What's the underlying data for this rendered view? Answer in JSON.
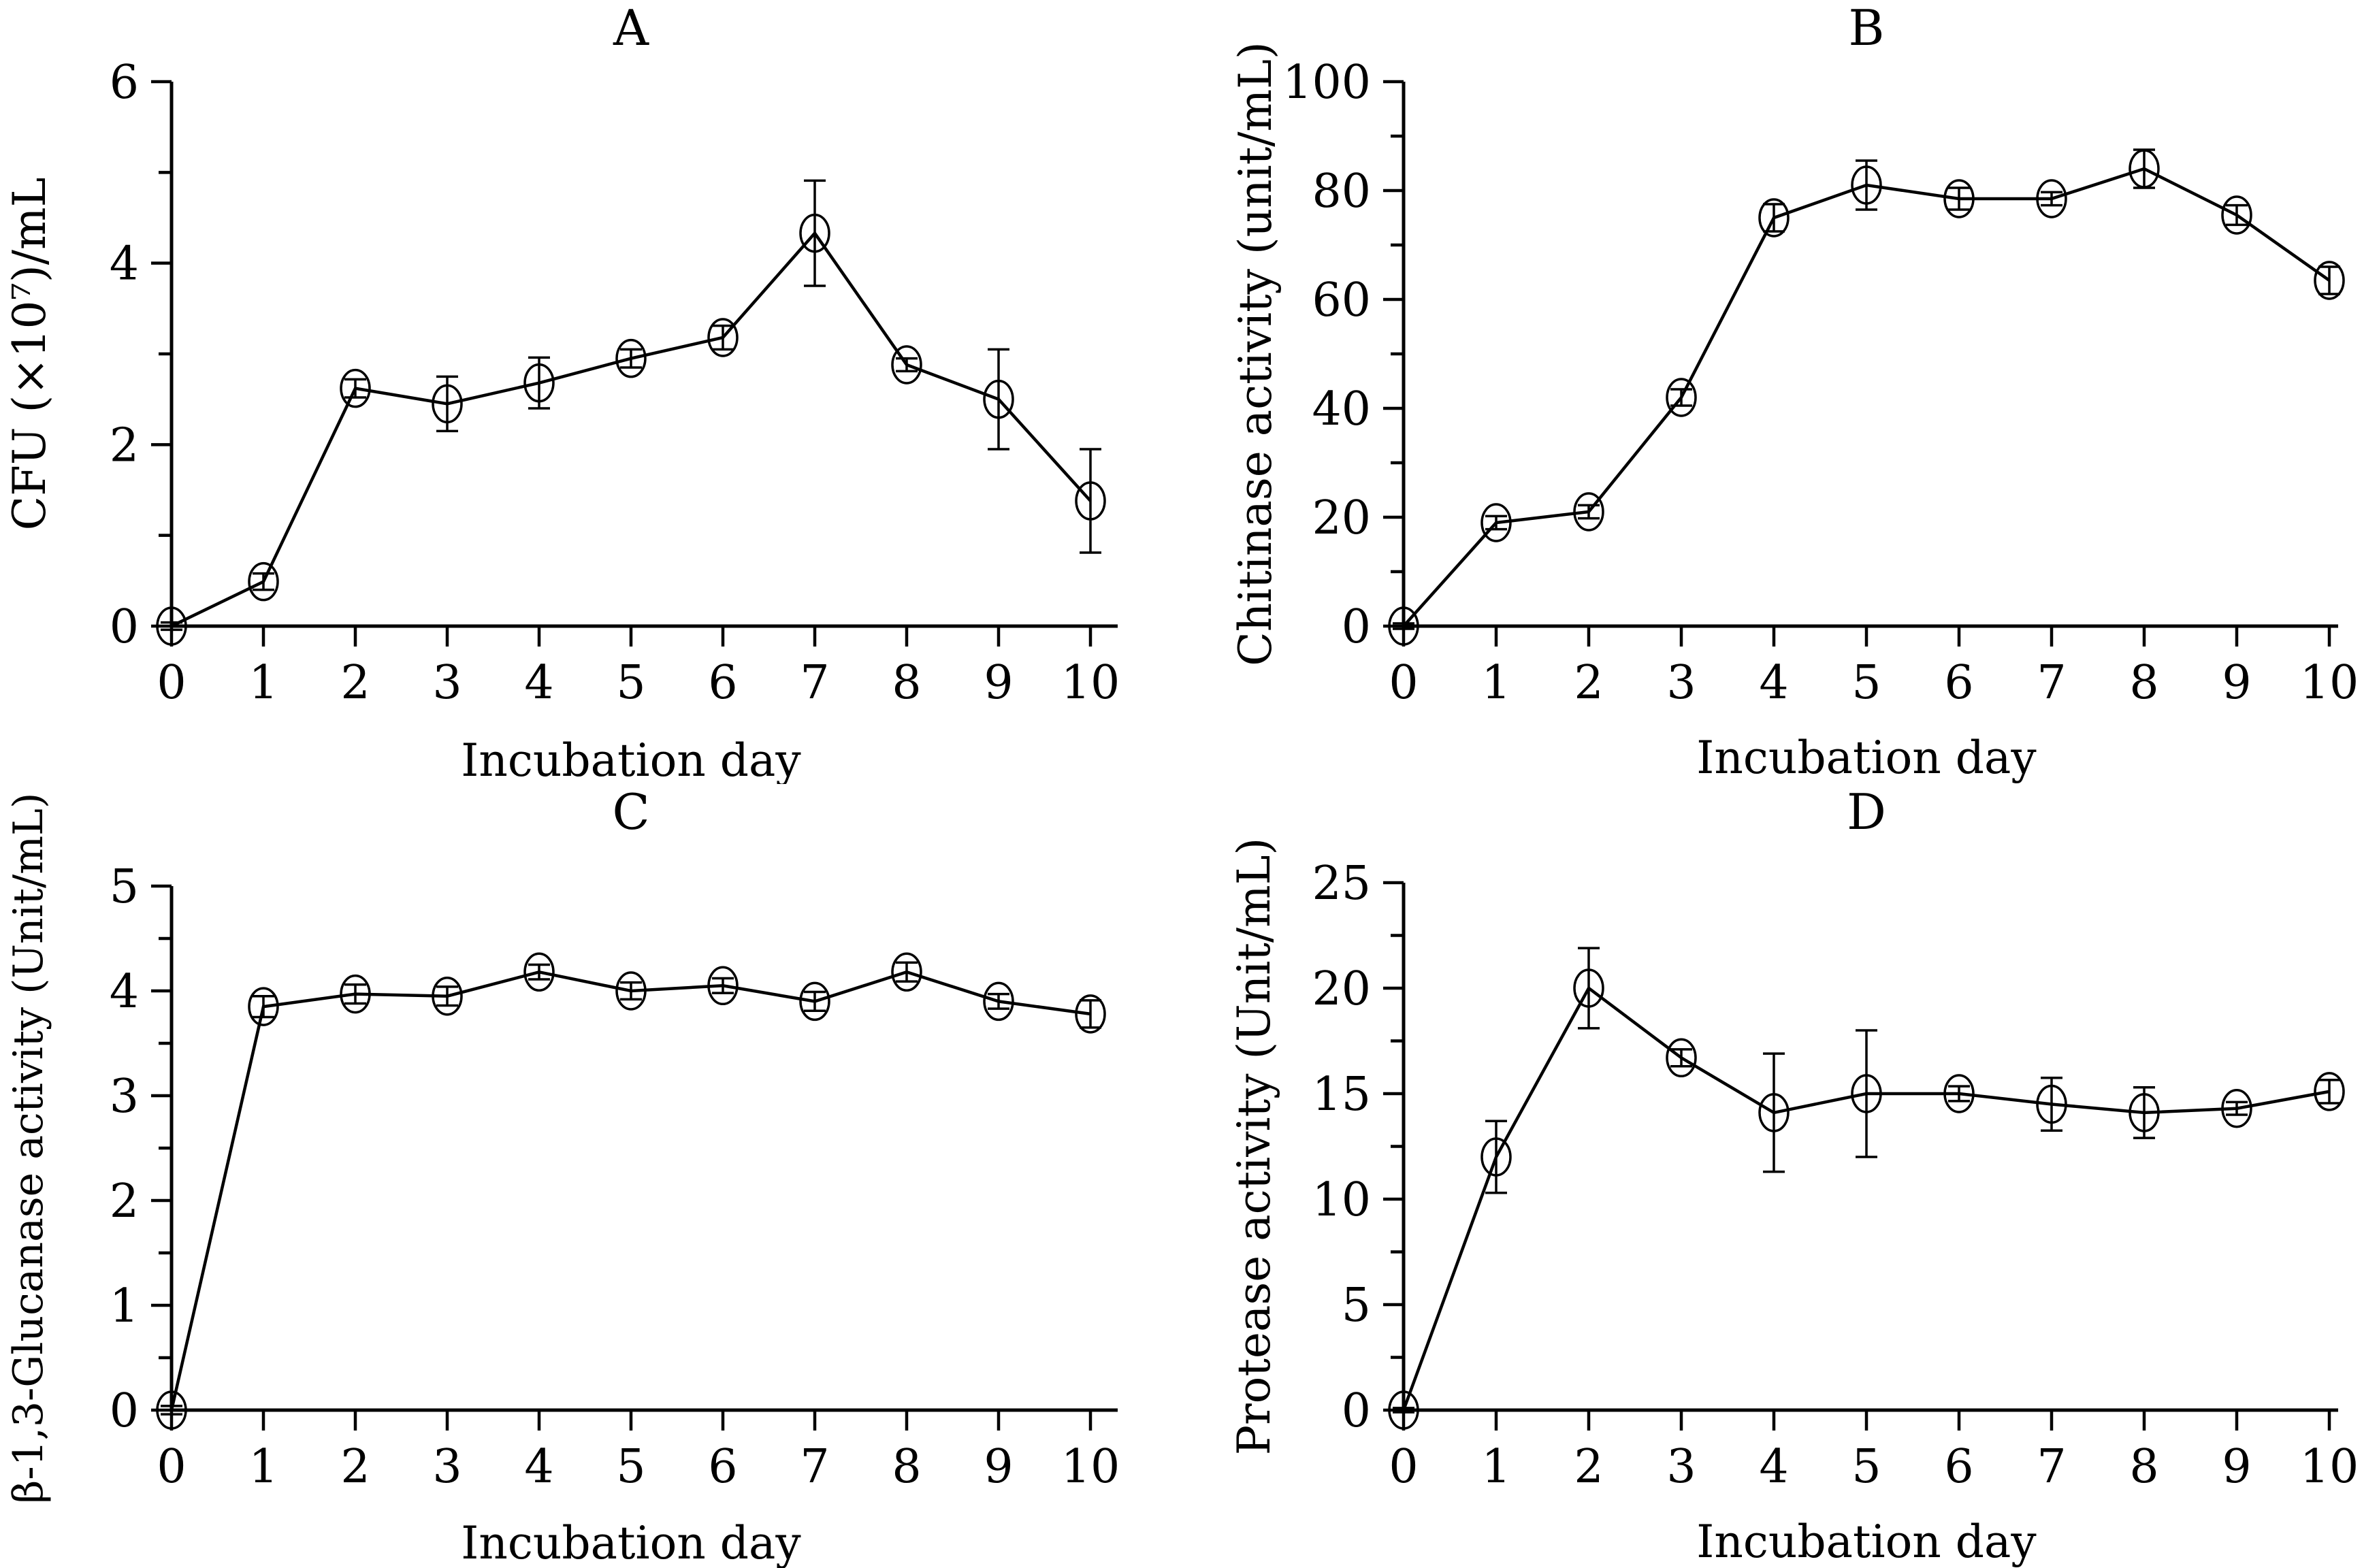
{
  "figure": {
    "background": "#ffffff",
    "ink_color": "#000000",
    "description": "Four-panel line chart of bacterial culture over incubation days",
    "panel_titles": [
      "A",
      "B",
      "C",
      "D"
    ]
  },
  "chart_data": [
    {
      "panel": "A",
      "type": "line",
      "title": "A",
      "xlabel": "Incubation day",
      "ylabel": "CFU (×10⁷)/mL",
      "x": [
        0,
        1,
        2,
        3,
        4,
        5,
        6,
        7,
        8,
        9,
        10
      ],
      "y": [
        0,
        0.49,
        2.62,
        2.45,
        2.68,
        2.95,
        3.18,
        4.33,
        2.88,
        2.5,
        1.38
      ],
      "yerr": [
        0.04,
        0.09,
        0.1,
        0.3,
        0.28,
        0.1,
        0.13,
        0.58,
        0.07,
        0.55,
        0.57
      ],
      "xlim": [
        0,
        10
      ],
      "ylim": [
        0,
        6
      ],
      "xticks": [
        0,
        1,
        2,
        3,
        4,
        5,
        6,
        7,
        8,
        9,
        10
      ],
      "yticks": [
        0,
        2,
        4,
        6
      ],
      "yticks_minor": [
        1,
        3,
        5
      ],
      "marker": "open-ellipse",
      "error_caps": true,
      "grid": false,
      "legend": null
    },
    {
      "panel": "B",
      "type": "line",
      "title": "B",
      "xlabel": "Incubation day",
      "ylabel": "Chitinase activity (unit/mL)",
      "x": [
        0,
        1,
        2,
        3,
        4,
        5,
        6,
        7,
        8,
        9,
        10
      ],
      "y": [
        0,
        19,
        21,
        42,
        75,
        81,
        78.5,
        78.5,
        84,
        75.5,
        63.5
      ],
      "yerr": [
        0.5,
        1.2,
        1.2,
        1.5,
        2.5,
        4.5,
        2,
        1.2,
        3.5,
        1.8,
        2.5
      ],
      "xlim": [
        0,
        10
      ],
      "ylim": [
        0,
        100
      ],
      "xticks": [
        0,
        1,
        2,
        3,
        4,
        5,
        6,
        7,
        8,
        9,
        10
      ],
      "yticks": [
        0,
        20,
        40,
        60,
        80,
        100
      ],
      "yticks_minor": [
        10,
        30,
        50,
        70,
        90
      ],
      "marker": "open-ellipse",
      "error_caps": true,
      "grid": false,
      "legend": null
    },
    {
      "panel": "C",
      "type": "line",
      "title": "C",
      "xlabel": "Incubation day",
      "ylabel": "β-1,3-Glucanase activity (Unit/mL)",
      "x": [
        0,
        1,
        2,
        3,
        4,
        5,
        6,
        7,
        8,
        9,
        10
      ],
      "y": [
        0,
        3.85,
        3.97,
        3.95,
        4.18,
        4.0,
        4.05,
        3.9,
        4.18,
        3.9,
        3.78
      ],
      "yerr": [
        0.04,
        0.1,
        0.09,
        0.09,
        0.07,
        0.08,
        0.07,
        0.09,
        0.09,
        0.07,
        0.13
      ],
      "xlim": [
        0,
        10
      ],
      "ylim": [
        0,
        5
      ],
      "xticks": [
        0,
        1,
        2,
        3,
        4,
        5,
        6,
        7,
        8,
        9,
        10
      ],
      "yticks": [
        0,
        1,
        2,
        3,
        4,
        5
      ],
      "yticks_minor": [
        0.5,
        1.5,
        2.5,
        3.5,
        4.5
      ],
      "marker": "open-ellipse",
      "error_caps": true,
      "grid": false,
      "legend": null
    },
    {
      "panel": "D",
      "type": "line",
      "title": "D",
      "xlabel": "Incubation day",
      "ylabel": "Protease activity (Unit/mL)",
      "x": [
        0,
        1,
        2,
        3,
        4,
        5,
        6,
        7,
        8,
        9,
        10
      ],
      "y": [
        0,
        12,
        20,
        16.7,
        14.1,
        15,
        15,
        14.5,
        14.1,
        14.3,
        15.1
      ],
      "yerr": [
        0.1,
        1.7,
        1.9,
        0.4,
        2.8,
        3,
        0.35,
        1.25,
        1.2,
        0.3,
        0.55
      ],
      "xlim": [
        0,
        10
      ],
      "ylim": [
        0,
        25
      ],
      "xticks": [
        0,
        1,
        2,
        3,
        4,
        5,
        6,
        7,
        8,
        9,
        10
      ],
      "yticks": [
        0,
        5,
        10,
        15,
        20,
        25
      ],
      "yticks_minor": [
        2.5,
        7.5,
        12.5,
        17.5,
        22.5
      ],
      "marker": "open-ellipse",
      "error_caps": true,
      "grid": false,
      "legend": null
    }
  ]
}
